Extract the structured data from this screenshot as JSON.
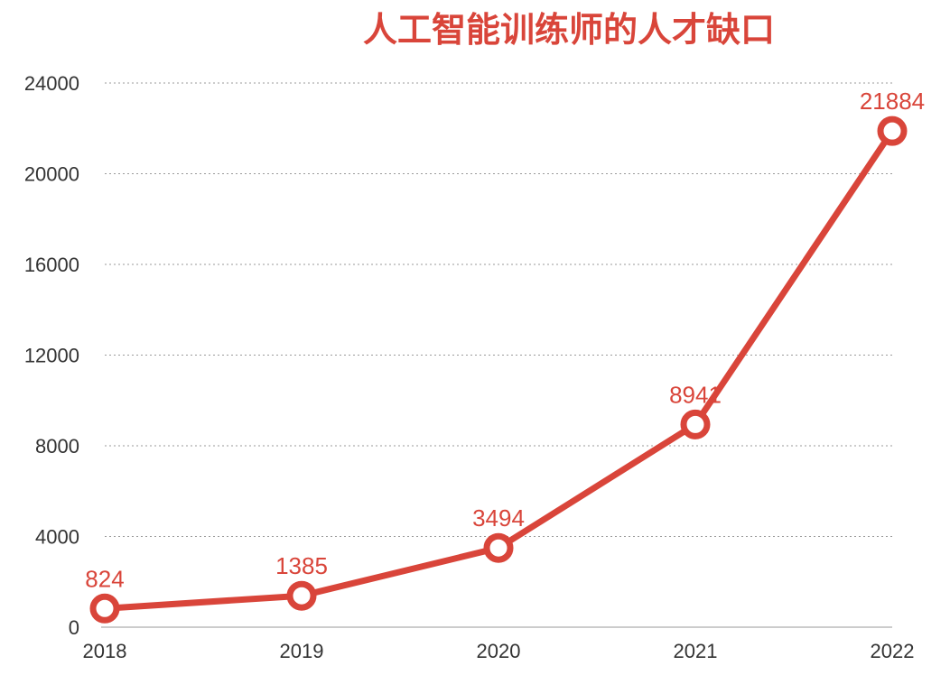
{
  "chart_data": {
    "type": "line",
    "title": "人工智能训练师的人才缺口",
    "categories": [
      "2018",
      "2019",
      "2020",
      "2021",
      "2022"
    ],
    "series": [
      {
        "values": [
          824,
          1385,
          3494,
          8941,
          21884
        ]
      }
    ],
    "ylim": [
      0,
      24000
    ],
    "yticks": [
      0,
      4000,
      8000,
      12000,
      16000,
      20000,
      24000
    ],
    "grid": true,
    "legend": "none",
    "colors": {
      "line": "#d9453a",
      "text": "#333333",
      "grid": "#9a9a9a"
    }
  }
}
